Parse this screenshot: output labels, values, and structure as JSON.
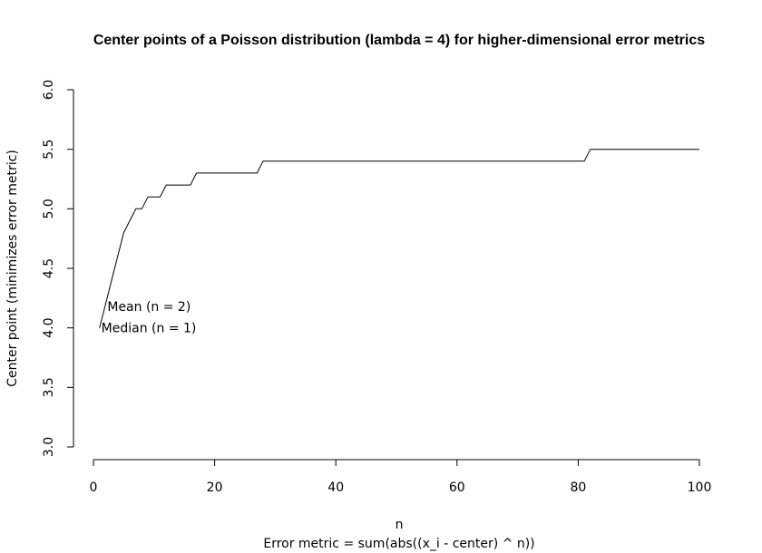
{
  "chart_data": {
    "type": "line",
    "title": "Center points of a Poisson distribution (lambda = 4) for higher-dimensional error metrics",
    "xlabel": "n",
    "xlabel2": "Error metric = sum(abs((x_i - center) ^ n))",
    "ylabel": "Center point (minimizes error metric)",
    "xlim": [
      0,
      100
    ],
    "ylim": [
      3.0,
      6.0
    ],
    "x_ticks": [
      "0",
      "20",
      "40",
      "60",
      "80",
      "100"
    ],
    "y_ticks": [
      "3.0",
      "3.5",
      "4.0",
      "4.5",
      "5.0",
      "5.5",
      "6.0"
    ],
    "grid": false,
    "series": [
      {
        "x": [
          1,
          2,
          3,
          4,
          5,
          7,
          8,
          9,
          11,
          12,
          16,
          17,
          27,
          28,
          81,
          82,
          100
        ],
        "y": [
          4.0,
          4.2,
          4.4,
          4.6,
          4.8,
          5.0,
          5.0,
          5.1,
          5.1,
          5.2,
          5.2,
          5.3,
          5.3,
          5.4,
          5.4,
          5.5,
          5.5
        ]
      }
    ],
    "annotations": [
      {
        "text": "Mean (n = 2)",
        "x": 2.3,
        "y": 4.18
      },
      {
        "text": "Median (n = 1)",
        "x": 1.3,
        "y": 4.0
      }
    ]
  }
}
